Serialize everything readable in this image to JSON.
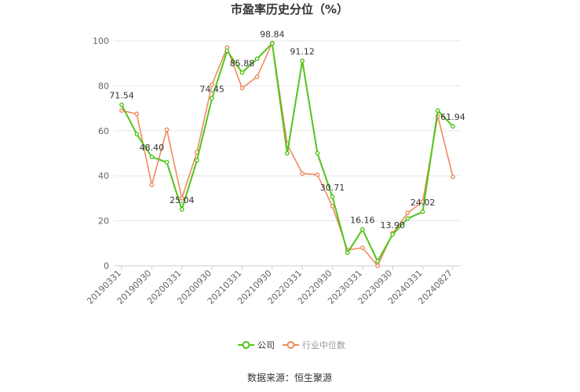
{
  "chart_data": {
    "type": "line",
    "title": "市盈率历史分位（%）",
    "source": "数据来源：恒生聚源",
    "ylim": [
      0,
      100
    ],
    "yticks": [
      0,
      20,
      40,
      60,
      80,
      100
    ],
    "x_tick_labels": [
      "20190331",
      "20190930",
      "20200331",
      "20200930",
      "20210331",
      "20210930",
      "20220331",
      "20220930",
      "20230331",
      "20230930",
      "20240331",
      "20240827"
    ],
    "grid": "horizontal",
    "legend_position": "bottom",
    "series": [
      {
        "name": "公司",
        "color": "#52c41a",
        "values": [
          71.54,
          58.5,
          48.4,
          46.0,
          25.04,
          46.8,
          74.45,
          95.5,
          85.88,
          92.0,
          98.84,
          50.0,
          91.12,
          50.0,
          30.71,
          5.8,
          16.16,
          2.0,
          13.9,
          21.0,
          24.02,
          69.0,
          61.94
        ],
        "labels": [
          "71.54",
          "",
          "48.40",
          "",
          "25.04",
          "",
          "74.45",
          "",
          "85.88",
          "",
          "98.84",
          "",
          "91.12",
          "",
          "30.71",
          "",
          "16.16",
          "",
          "13.90",
          "",
          "24.02",
          "",
          "61.94"
        ]
      },
      {
        "name": "行业中位数",
        "color": "#f08a5d",
        "values": [
          69.0,
          67.5,
          36.0,
          60.5,
          30.0,
          50.5,
          80.5,
          97.0,
          79.0,
          84.0,
          99.0,
          54.0,
          41.0,
          40.5,
          26.5,
          7.0,
          8.0,
          0.0,
          14.5,
          23.5,
          28.5,
          66.5,
          39.5
        ]
      }
    ]
  }
}
